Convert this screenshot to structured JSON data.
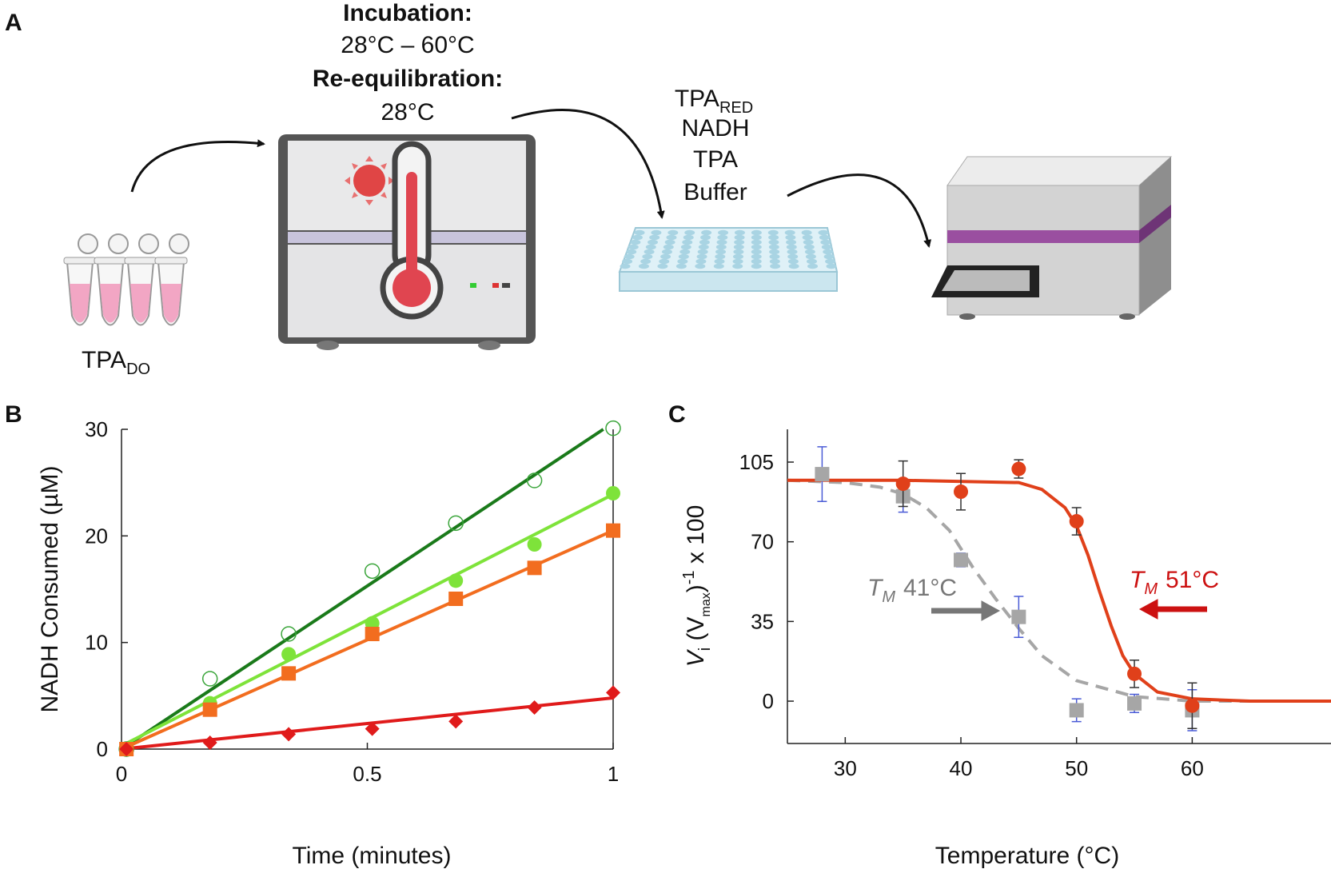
{
  "panel_labels": [
    "A",
    "B",
    "C"
  ],
  "diagram": {
    "incubation_title": "Incubation:",
    "incubation_range": "28°C – 60°C",
    "reequilibration_title": "Re-equilibration:",
    "reequilibration_temp": "28°C",
    "reagents": [
      {
        "text": "TPA",
        "sub": "RED"
      },
      {
        "text": "NADH"
      },
      {
        "text": "TPA"
      },
      {
        "text": "Buffer"
      }
    ],
    "sample": {
      "text": "TPA",
      "sub": "DO"
    }
  },
  "chart_data": [
    {
      "type": "scatter",
      "xlabel": "Time (minutes)",
      "ylabel": "NADH Consumed (µM)",
      "x": [
        0.01,
        0.18,
        0.34,
        0.51,
        0.68,
        0.84,
        1.0
      ],
      "xlim": [
        0,
        1
      ],
      "xticks": [
        0,
        0.5,
        1
      ],
      "ylim": [
        0,
        30
      ],
      "yticks": [
        0,
        10,
        20,
        30
      ],
      "series": [
        {
          "marker": "circle-open",
          "color": "#3aa53a",
          "values": [
            0,
            6.6,
            10.8,
            16.7,
            21.2,
            25.2,
            30.1
          ],
          "fit": {
            "color": "#1a7a1a",
            "x": [
              0,
              0.98
            ],
            "values": [
              0,
              30
            ]
          }
        },
        {
          "marker": "circle",
          "color": "#7ee33a",
          "values": [
            0,
            4.3,
            8.9,
            11.8,
            15.8,
            19.2,
            24
          ],
          "fit": {
            "color": "#7ee33a",
            "x": [
              0,
              1
            ],
            "values": [
              0.3,
              23.9
            ]
          }
        },
        {
          "marker": "square",
          "color": "#f26d1f",
          "values": [
            0,
            3.7,
            7.1,
            10.8,
            14.1,
            17,
            20.5
          ],
          "fit": {
            "color": "#f26d1f",
            "x": [
              0,
              1
            ],
            "values": [
              0,
              20.5
            ]
          }
        },
        {
          "marker": "diamond",
          "color": "#e01b1b",
          "values": [
            0,
            0.6,
            1.4,
            1.9,
            2.6,
            3.9,
            5.3
          ],
          "fit": {
            "color": "#e01b1b",
            "x": [
              0,
              1
            ],
            "values": [
              0,
              4.8
            ]
          }
        }
      ]
    },
    {
      "type": "scatter",
      "xlabel": "Temperature (°C)",
      "ylabel_parts": [
        "V",
        "i",
        " (V",
        "max",
        ")",
        "-1",
        " x 100"
      ],
      "x": [
        28,
        35,
        40,
        45,
        50,
        55,
        60
      ],
      "xlim": [
        25,
        72
      ],
      "xticks": [
        30,
        40,
        50,
        60
      ],
      "ylim": [
        -18.6,
        119.4
      ],
      "yticks": [
        0,
        35,
        70,
        105
      ],
      "series": [
        {
          "marker": "square",
          "color": "#a6a6a6",
          "error_color": "#4a5bd6",
          "values": [
            99.7,
            90,
            62,
            37,
            -4,
            -1,
            -4
          ],
          "errors": [
            12,
            7,
            3,
            9,
            5,
            4,
            9
          ],
          "fit": {
            "color": "#a6a6a6",
            "dashed": true,
            "x": [
              25,
              30,
              33,
              35,
              37,
              39,
              41,
              43,
              45,
              47,
              50,
              55,
              60,
              65,
              72
            ],
            "values": [
              97,
              96,
              94,
              91,
              85,
              75,
              59,
              45,
              32,
              20,
              9,
              2,
              0,
              0,
              0
            ]
          }
        },
        {
          "marker": "circle",
          "color": "#e0401a",
          "error_color": "#333333",
          "values": [
            null,
            95.5,
            92,
            102,
            79,
            12,
            -2
          ],
          "errors": [
            null,
            10,
            8,
            4,
            6,
            6,
            10
          ],
          "fit": {
            "color": "#e0401a",
            "x": [
              25,
              35,
              45,
              47,
              49,
              50,
              51,
              52,
              53,
              54,
              55,
              57,
              60,
              65,
              72
            ],
            "values": [
              97,
              97,
              96,
              93,
              85,
              77,
              64,
              48,
              33,
              20,
              12,
              4,
              1,
              0,
              0
            ]
          }
        }
      ],
      "annotations": [
        {
          "symbol": "T",
          "sub": "M",
          "text": "41°C",
          "color": "#777777"
        },
        {
          "symbol": "T",
          "sub": "M",
          "text": "51°C",
          "color": "#cc1111"
        }
      ]
    }
  ]
}
